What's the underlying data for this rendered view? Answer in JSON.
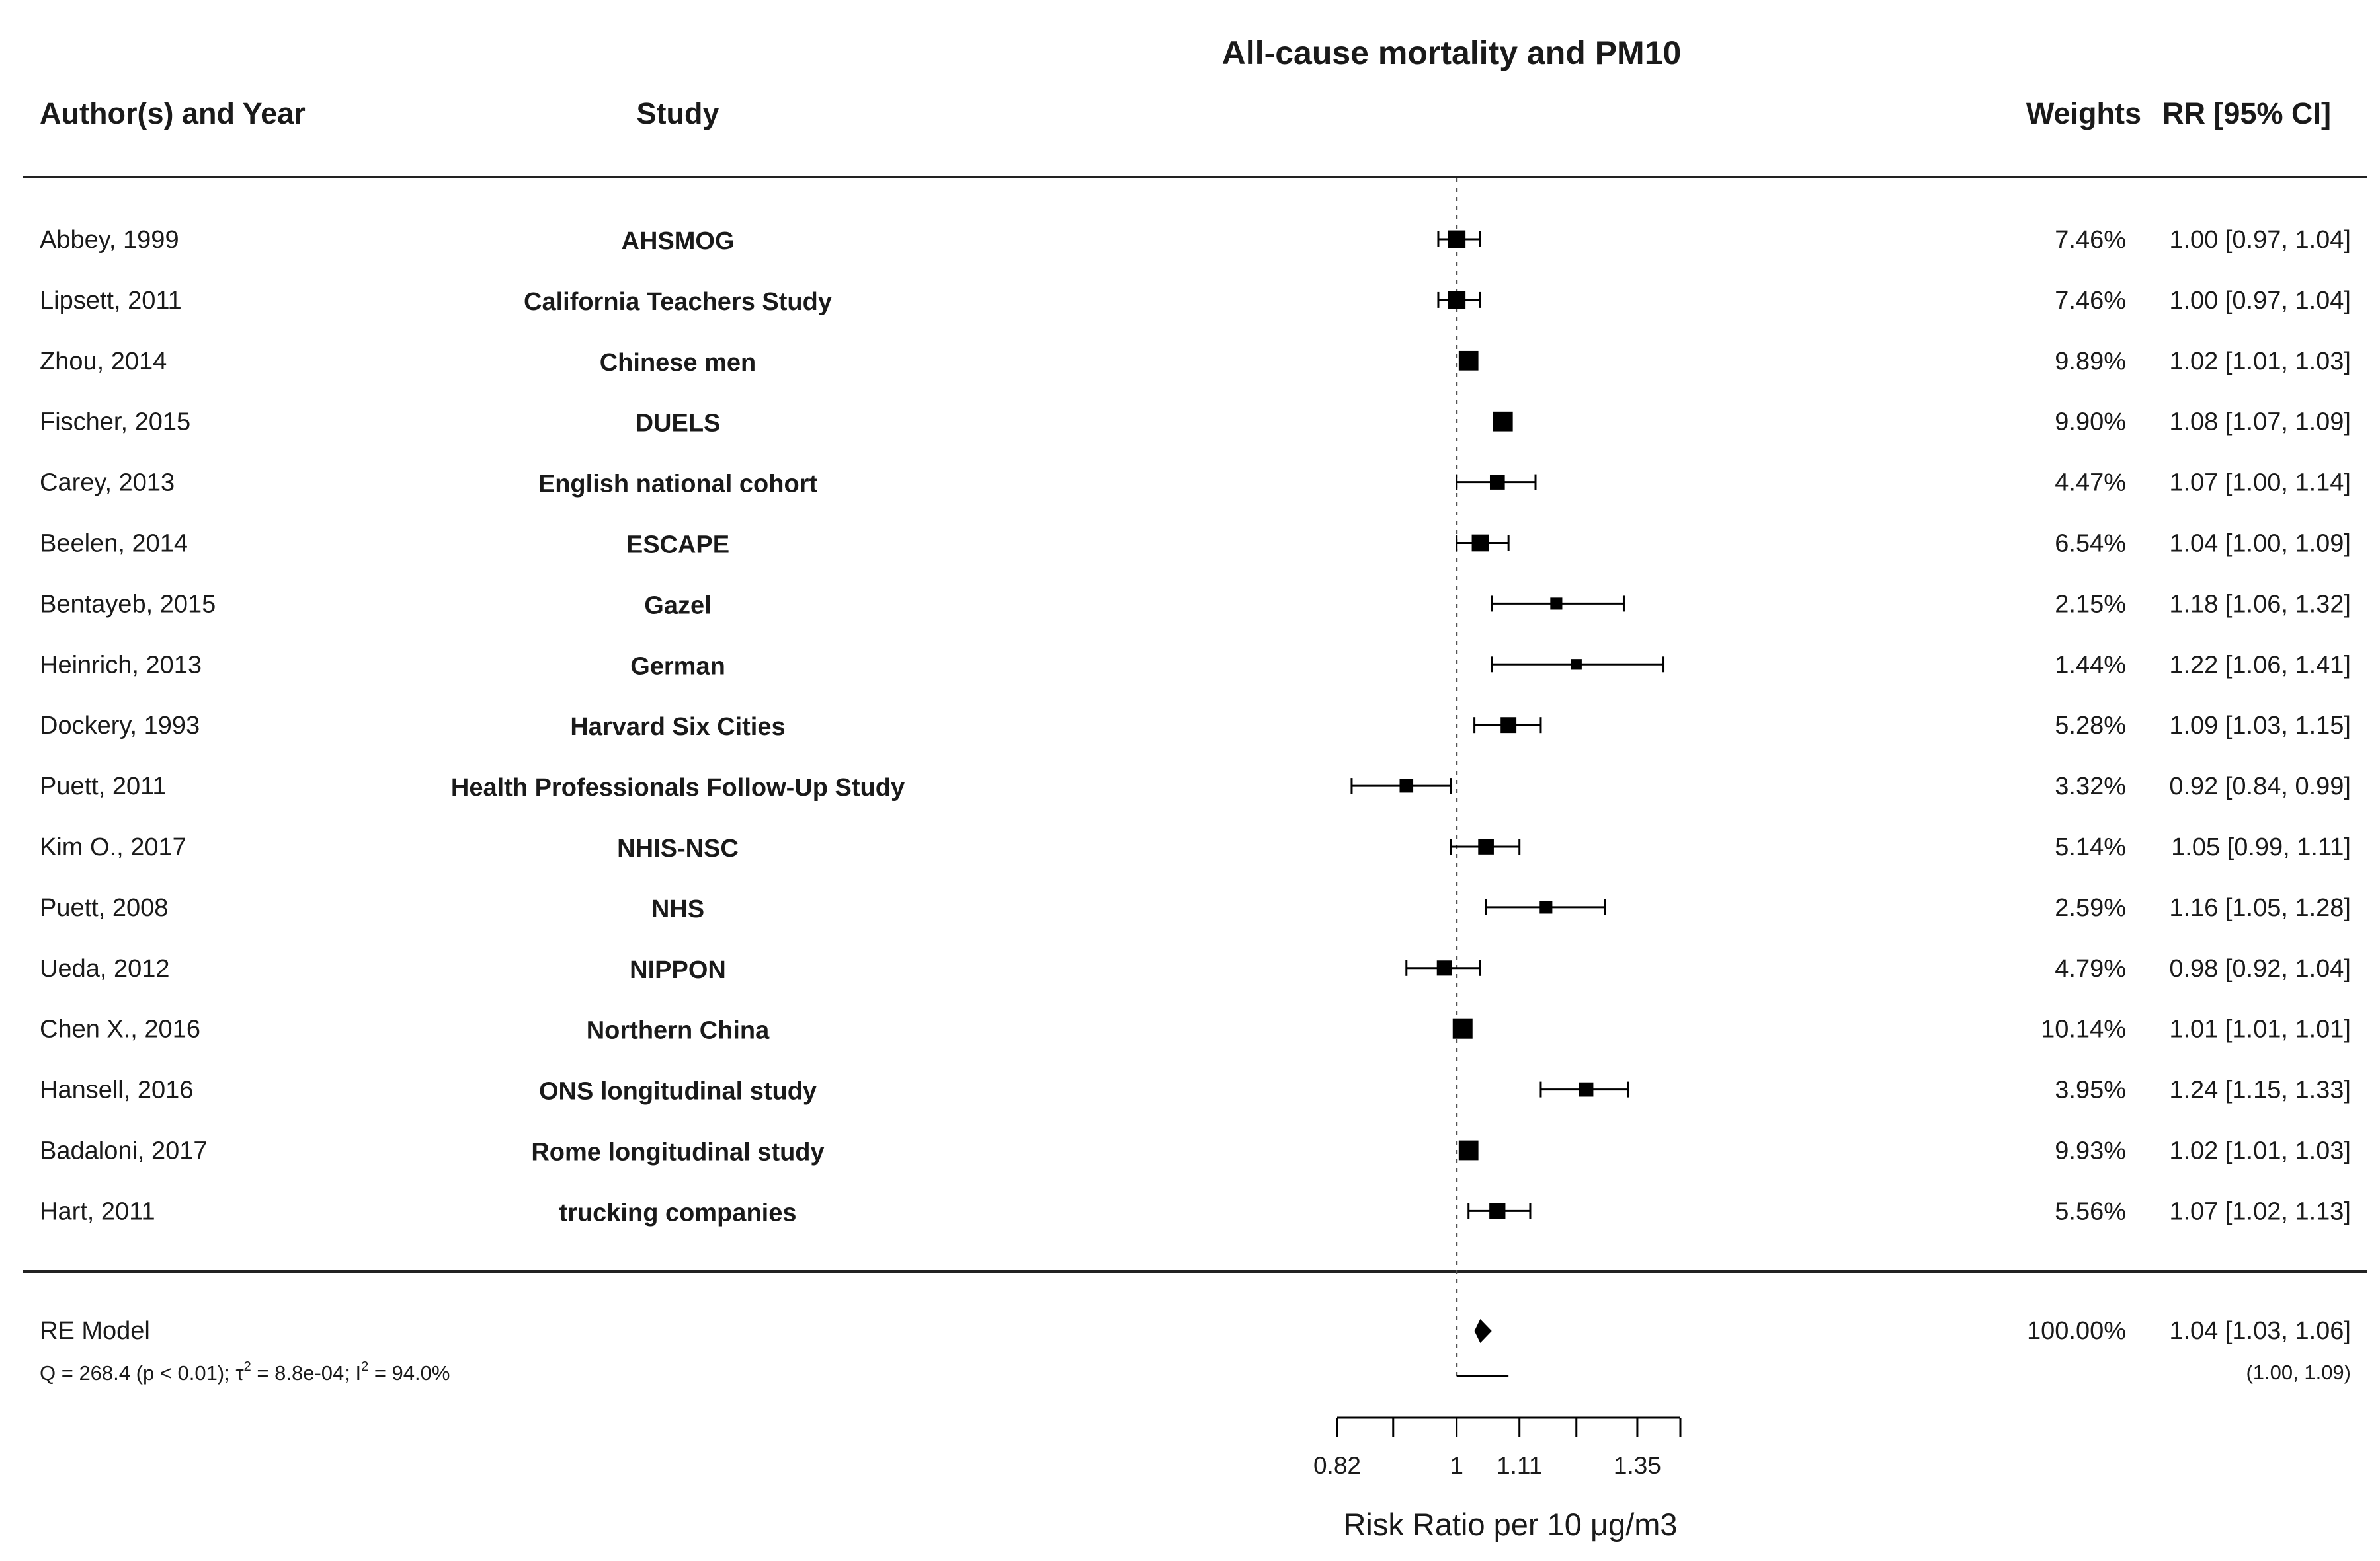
{
  "chart_data": {
    "type": "forest",
    "title": "All-cause mortality and PM10",
    "columns": {
      "author": "Author(s) and Year",
      "study": "Study",
      "weights": "Weights",
      "rr": "RR [95% CI]"
    },
    "xlabel": "Risk Ratio per 10 μg/m3",
    "x_scale": "log",
    "xlim": [
      0.82,
      1.45
    ],
    "reference_line": 1,
    "x_tick_labels": [
      {
        "value": 0.82,
        "label": "0.82"
      },
      {
        "value": 1,
        "label": "1"
      },
      {
        "value": 1.11,
        "label": "1.11"
      },
      {
        "value": 1.35,
        "label": "1.35"
      }
    ],
    "x_minor_ticks": [
      0.82,
      0.9,
      1,
      1.11,
      1.22,
      1.35,
      1.45
    ],
    "studies": [
      {
        "author": "Abbey, 1999",
        "study": "AHSMOG",
        "weight": 7.46,
        "weight_label": "7.46%",
        "rr": 1.0,
        "lo": 0.97,
        "hi": 1.04,
        "rr_label": "1.00 [0.97, 1.04]"
      },
      {
        "author": "Lipsett, 2011",
        "study": "California Teachers Study",
        "weight": 7.46,
        "weight_label": "7.46%",
        "rr": 1.0,
        "lo": 0.97,
        "hi": 1.04,
        "rr_label": "1.00 [0.97, 1.04]"
      },
      {
        "author": "Zhou, 2014",
        "study": "Chinese men",
        "weight": 9.89,
        "weight_label": "9.89%",
        "rr": 1.02,
        "lo": 1.01,
        "hi": 1.03,
        "rr_label": "1.02 [1.01, 1.03]"
      },
      {
        "author": "Fischer, 2015",
        "study": "DUELS",
        "weight": 9.9,
        "weight_label": "9.90%",
        "rr": 1.08,
        "lo": 1.07,
        "hi": 1.09,
        "rr_label": "1.08 [1.07, 1.09]"
      },
      {
        "author": "Carey, 2013",
        "study": "English national cohort",
        "weight": 4.47,
        "weight_label": "4.47%",
        "rr": 1.07,
        "lo": 1.0,
        "hi": 1.14,
        "rr_label": "1.07 [1.00, 1.14]"
      },
      {
        "author": "Beelen, 2014",
        "study": "ESCAPE",
        "weight": 6.54,
        "weight_label": "6.54%",
        "rr": 1.04,
        "lo": 1.0,
        "hi": 1.09,
        "rr_label": "1.04 [1.00, 1.09]"
      },
      {
        "author": "Bentayeb, 2015",
        "study": "Gazel",
        "weight": 2.15,
        "weight_label": "2.15%",
        "rr": 1.18,
        "lo": 1.06,
        "hi": 1.32,
        "rr_label": "1.18 [1.06, 1.32]"
      },
      {
        "author": "Heinrich, 2013",
        "study": "German",
        "weight": 1.44,
        "weight_label": "1.44%",
        "rr": 1.22,
        "lo": 1.06,
        "hi": 1.41,
        "rr_label": "1.22 [1.06, 1.41]"
      },
      {
        "author": "Dockery, 1993",
        "study": "Harvard Six Cities",
        "weight": 5.28,
        "weight_label": "5.28%",
        "rr": 1.09,
        "lo": 1.03,
        "hi": 1.15,
        "rr_label": "1.09 [1.03, 1.15]"
      },
      {
        "author": "Puett, 2011",
        "study": "Health Professionals Follow-Up Study",
        "weight": 3.32,
        "weight_label": "3.32%",
        "rr": 0.92,
        "lo": 0.84,
        "hi": 0.99,
        "rr_label": "0.92 [0.84, 0.99]"
      },
      {
        "author": "Kim O., 2017",
        "study": "NHIS-NSC",
        "weight": 5.14,
        "weight_label": "5.14%",
        "rr": 1.05,
        "lo": 0.99,
        "hi": 1.11,
        "rr_label": "1.05 [0.99, 1.11]"
      },
      {
        "author": "Puett, 2008",
        "study": "NHS",
        "weight": 2.59,
        "weight_label": "2.59%",
        "rr": 1.16,
        "lo": 1.05,
        "hi": 1.28,
        "rr_label": "1.16 [1.05, 1.28]"
      },
      {
        "author": "Ueda, 2012",
        "study": "NIPPON",
        "weight": 4.79,
        "weight_label": "4.79%",
        "rr": 0.98,
        "lo": 0.92,
        "hi": 1.04,
        "rr_label": "0.98 [0.92, 1.04]"
      },
      {
        "author": "Chen X., 2016",
        "study": "Northern China",
        "weight": 10.14,
        "weight_label": "10.14%",
        "rr": 1.01,
        "lo": 1.01,
        "hi": 1.01,
        "rr_label": "1.01 [1.01, 1.01]"
      },
      {
        "author": "Hansell, 2016",
        "study": "ONS longitudinal study",
        "weight": 3.95,
        "weight_label": "3.95%",
        "rr": 1.24,
        "lo": 1.15,
        "hi": 1.33,
        "rr_label": "1.24 [1.15, 1.33]"
      },
      {
        "author": "Badaloni, 2017",
        "study": "Rome longitudinal study",
        "weight": 9.93,
        "weight_label": "9.93%",
        "rr": 1.02,
        "lo": 1.01,
        "hi": 1.03,
        "rr_label": "1.02 [1.01, 1.03]"
      },
      {
        "author": "Hart, 2011",
        "study": "trucking companies",
        "weight": 5.56,
        "weight_label": "5.56%",
        "rr": 1.07,
        "lo": 1.02,
        "hi": 1.13,
        "rr_label": "1.07 [1.02, 1.13]"
      }
    ],
    "summary": {
      "label": "RE Model",
      "weight_label": "100.00%",
      "rr": 1.04,
      "lo": 1.03,
      "hi": 1.06,
      "rr_label": "1.04 [1.03, 1.06]",
      "pi_lo": 1.0,
      "pi_hi": 1.09,
      "pi_label": "(1.00, 1.09)",
      "het_text": {
        "q": "Q = 268.4 (p < 0.01); τ",
        "tau_exp": "2",
        "tau_val": " = 8.8e-04; I",
        "i_exp": "2",
        "i_val": " = 94.0%"
      }
    }
  }
}
